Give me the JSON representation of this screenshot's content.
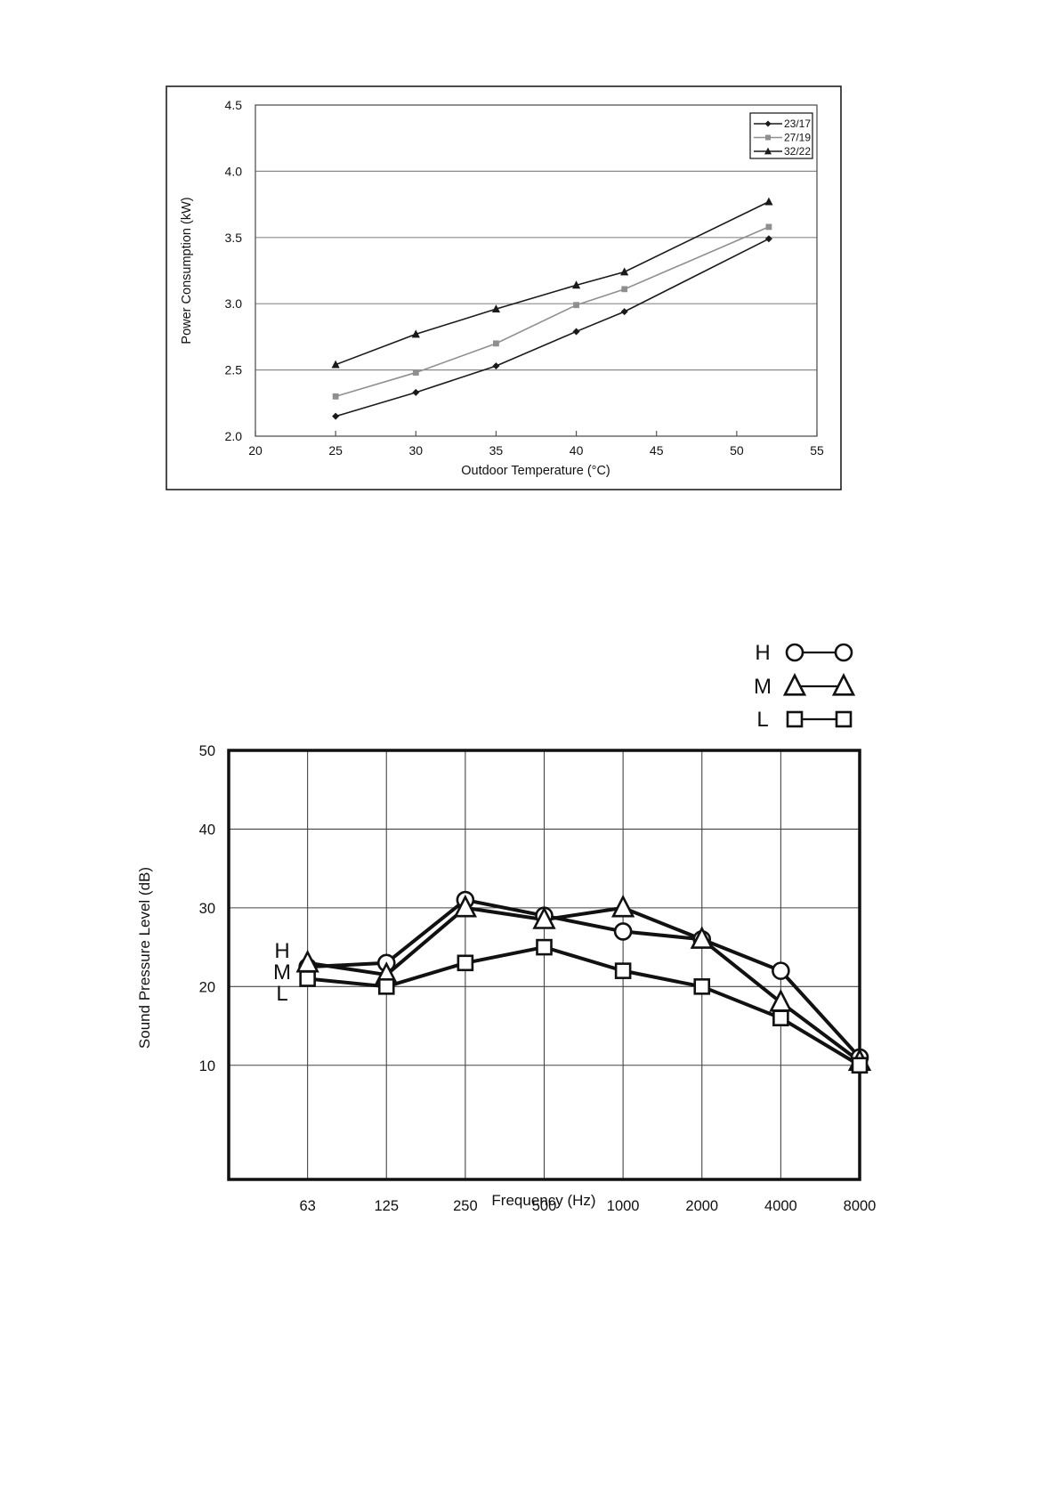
{
  "page": {
    "background": "#ffffff"
  },
  "chart_data": [
    {
      "id": "power-consumption",
      "type": "line",
      "title": "",
      "xlabel": "Outdoor Temperature (°C)",
      "ylabel": "Power Consumption (kW)",
      "x": [
        25,
        30,
        35,
        40,
        43,
        52
      ],
      "xlim": [
        20,
        55
      ],
      "xticks": [
        20,
        25,
        30,
        35,
        40,
        45,
        50,
        55
      ],
      "ylim": [
        2.0,
        4.5
      ],
      "yticks": [
        2.0,
        2.5,
        3.0,
        3.5,
        4.0,
        4.5
      ],
      "ytick_decimals": 1,
      "grid": "horizontal",
      "legend_position": "top-right-inside-box",
      "series": [
        {
          "name": "23/17",
          "marker": "diamond",
          "color": "#1a1a1a",
          "values": [
            2.15,
            2.33,
            2.53,
            2.79,
            2.94,
            3.49
          ]
        },
        {
          "name": "27/19",
          "marker": "square",
          "color": "#8f8f8f",
          "values": [
            2.3,
            2.48,
            2.7,
            2.99,
            3.11,
            3.58
          ]
        },
        {
          "name": "32/22",
          "marker": "triangle",
          "color": "#1a1a1a",
          "values": [
            2.54,
            2.77,
            2.96,
            3.14,
            3.24,
            3.77
          ]
        }
      ]
    },
    {
      "id": "sound-pressure",
      "type": "line",
      "title": "",
      "xlabel": "Frequency (Hz)",
      "ylabel": "Sound Pressure Level (dB)",
      "categories": [
        "63",
        "125",
        "250",
        "500",
        "1000",
        "2000",
        "4000",
        "8000"
      ],
      "ylim": [
        -4.5,
        50
      ],
      "yticks": [
        10,
        20,
        30,
        40,
        50
      ],
      "grid": "both",
      "legend_position": "top-right-outside",
      "inline_labels": [
        "H",
        "M",
        "L"
      ],
      "series": [
        {
          "name": "H",
          "marker": "circle",
          "color": "#111111",
          "values": [
            22.5,
            23.0,
            31.0,
            29.0,
            27.0,
            26.0,
            22.0,
            11.0
          ]
        },
        {
          "name": "M",
          "marker": "triangle",
          "color": "#111111",
          "values": [
            23.0,
            21.5,
            30.0,
            28.5,
            30.0,
            26.0,
            18.0,
            10.5
          ]
        },
        {
          "name": "L",
          "marker": "square",
          "color": "#111111",
          "values": [
            21.0,
            20.0,
            23.0,
            25.0,
            22.0,
            20.0,
            16.0,
            10.0
          ]
        }
      ]
    }
  ]
}
